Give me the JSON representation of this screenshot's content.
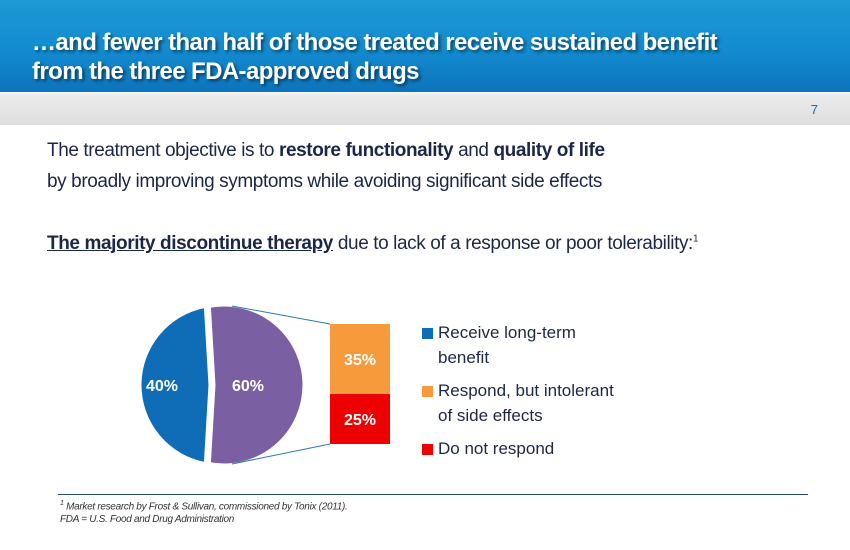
{
  "header": {
    "title_line1": "…and fewer than half of those treated receive sustained benefit",
    "title_line2": "from the three FDA-approved drugs",
    "page_number": "7"
  },
  "body": {
    "line1_a": "The treatment objective is to ",
    "line1_b": "restore functionality",
    "line1_c": " and ",
    "line1_d": "quality of life",
    "line2": "by broadly improving symptoms while avoiding significant side effects",
    "line3_a": "The majority discontinue therapy",
    "line3_b": " due to lack of a response or poor tolerability:",
    "line3_sup": "1"
  },
  "chart_data": {
    "type": "pie",
    "pie": {
      "slices": [
        {
          "label": "40%",
          "value": 40,
          "color": "#0f6db8"
        },
        {
          "label": "60%",
          "value": 60,
          "color": "#7b5fa3"
        }
      ]
    },
    "bar": {
      "segments": [
        {
          "label": "35%",
          "value": 35,
          "color": "#f79a3c"
        },
        {
          "label": "25%",
          "value": 25,
          "color": "#ee0000"
        }
      ]
    },
    "legend": [
      {
        "line1": "Receive long-term",
        "line2": "benefit",
        "color": "#0f6db8"
      },
      {
        "line1": "Respond, but intolerant",
        "line2": "of side effects",
        "color": "#f79a3c"
      },
      {
        "line1": "Do not respond",
        "line2": "",
        "color": "#ee0000"
      }
    ],
    "legend_position": "right"
  },
  "footnote": {
    "sup": "1",
    "line1": "Market research by Frost & Sullivan, commissioned by Tonix (2011).",
    "line2": "FDA = U.S. Food and Drug Administration"
  }
}
